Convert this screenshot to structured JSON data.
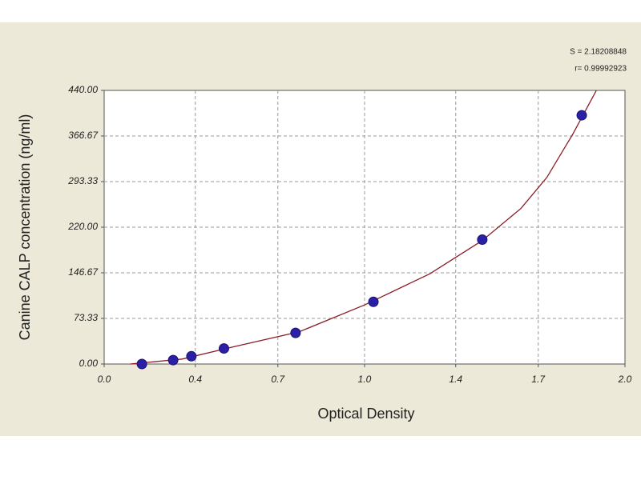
{
  "chart_data": {
    "type": "scatter",
    "x_label": "Optical Density",
    "y_label": "Canine CALP concentration (ng/ml)",
    "annotations": [
      "S = 2.18208848",
      "r= 0.99992923"
    ],
    "xlim": [
      0,
      2
    ],
    "ylim": [
      0,
      440
    ],
    "xticks": [
      {
        "value": 0,
        "label": "0.0"
      },
      {
        "value": 0.35,
        "label": "0.4"
      },
      {
        "value": 0.667,
        "label": "0.7"
      },
      {
        "value": 1,
        "label": "1.0"
      },
      {
        "value": 1.35,
        "label": "1.4"
      },
      {
        "value": 1.667,
        "label": "1.7"
      },
      {
        "value": 2,
        "label": "2.0"
      }
    ],
    "yticks": [
      {
        "value": 0,
        "label": "0.00"
      },
      {
        "value": 73.33,
        "label": "73.33"
      },
      {
        "value": 146.67,
        "label": "146.67"
      },
      {
        "value": 220,
        "label": "220.00"
      },
      {
        "value": 293.33,
        "label": "293.33"
      },
      {
        "value": 366.67,
        "label": "366.67"
      },
      {
        "value": 440,
        "label": "440.00"
      }
    ],
    "grid": true,
    "series": [
      {
        "type": "scatter",
        "color": "#2b1fa6",
        "x": [
          0.145,
          0.265,
          0.335,
          0.46,
          0.735,
          1.034,
          1.452,
          1.834
        ],
        "values": [
          0,
          6.25,
          12.5,
          25,
          50,
          100,
          200,
          400
        ]
      },
      {
        "type": "line",
        "color": "#8b1c24",
        "x": [
          0.1,
          0.3,
          0.5,
          0.75,
          1.0,
          1.25,
          1.45,
          1.6,
          1.7,
          1.8,
          1.89
        ],
        "values": [
          0,
          8,
          28,
          52,
          95,
          145,
          198,
          250,
          300,
          370,
          440
        ]
      }
    ]
  }
}
